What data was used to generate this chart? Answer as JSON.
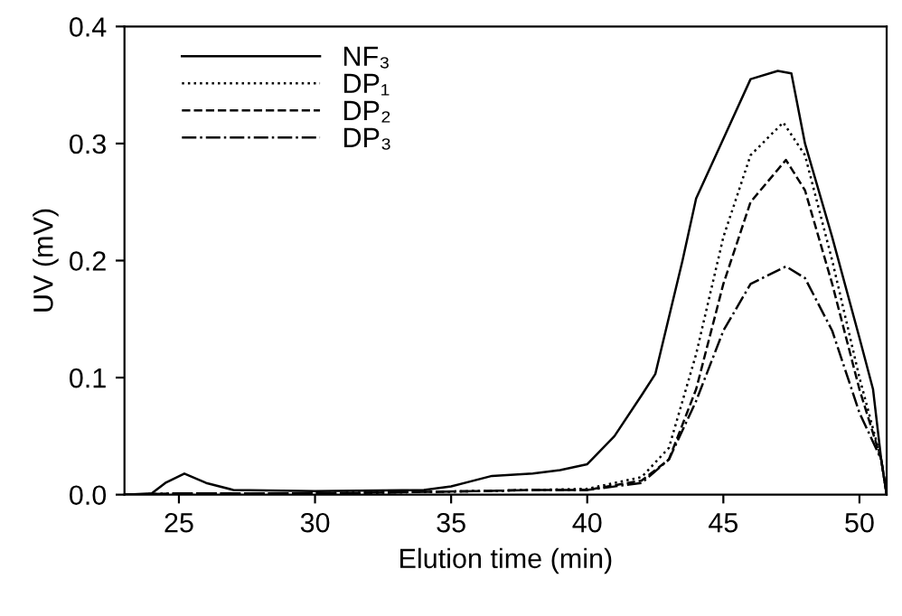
{
  "chart_data": {
    "type": "line",
    "xlabel": "Elution time (min)",
    "ylabel": "UV (mV)",
    "xlim": [
      23,
      51
    ],
    "xticks": [
      25,
      30,
      35,
      40,
      45,
      50
    ],
    "ylim": [
      0,
      0.4
    ],
    "yticks": [
      {
        "value": 0,
        "label": "0.0"
      },
      {
        "value": 0.1,
        "label": "0.1"
      },
      {
        "value": 0.2,
        "label": "0.2"
      },
      {
        "value": 0.3,
        "label": "0.3"
      },
      {
        "value": 0.4,
        "label": "0.4"
      }
    ],
    "grid": false,
    "legend": "top left",
    "marker": "none",
    "series": [
      {
        "name": "NF₃",
        "color": "#000000",
        "line_style": "solid",
        "x": [
          23,
          24,
          24.5,
          25.2,
          26,
          27,
          30,
          34,
          35,
          36.5,
          38,
          39,
          40,
          41,
          42,
          42.5,
          43.5,
          44,
          45,
          46,
          47,
          47.5,
          48,
          49,
          50,
          50.5,
          50.8,
          51
        ],
        "values": [
          0,
          0.001,
          0.01,
          0.018,
          0.01,
          0.004,
          0.003,
          0.004,
          0.007,
          0.016,
          0.018,
          0.021,
          0.026,
          0.05,
          0.085,
          0.103,
          0.2,
          0.253,
          0.304,
          0.355,
          0.362,
          0.36,
          0.3,
          0.22,
          0.134,
          0.09,
          0.03,
          0
        ]
      },
      {
        "name": "DP₁",
        "color": "#000000",
        "line_style": "dotted",
        "x": [
          23,
          25,
          30,
          36,
          38,
          40,
          42,
          43,
          44,
          45,
          46,
          47.2,
          48,
          49,
          50,
          50.8,
          51
        ],
        "values": [
          0,
          0.001,
          0.001,
          0.003,
          0.004,
          0.005,
          0.015,
          0.04,
          0.12,
          0.22,
          0.29,
          0.318,
          0.29,
          0.2,
          0.1,
          0.03,
          0
        ]
      },
      {
        "name": "DP₂",
        "color": "#000000",
        "line_style": "dashed",
        "x": [
          23,
          25,
          30,
          36,
          38,
          40,
          42,
          43,
          44,
          45,
          46,
          47.3,
          48,
          49,
          50,
          50.8,
          51
        ],
        "values": [
          0,
          0.001,
          0.001,
          0.003,
          0.004,
          0.004,
          0.012,
          0.03,
          0.09,
          0.18,
          0.25,
          0.286,
          0.26,
          0.18,
          0.09,
          0.03,
          0
        ]
      },
      {
        "name": "DP₃",
        "color": "#000000",
        "line_style": "dashdot",
        "x": [
          23,
          25,
          30,
          36,
          38,
          40,
          42,
          43,
          44,
          45,
          46,
          47.3,
          48,
          49,
          50,
          50.8,
          51
        ],
        "values": [
          0,
          0.001,
          0.001,
          0.003,
          0.004,
          0.004,
          0.01,
          0.03,
          0.08,
          0.14,
          0.18,
          0.195,
          0.185,
          0.14,
          0.07,
          0.03,
          0
        ]
      }
    ]
  }
}
